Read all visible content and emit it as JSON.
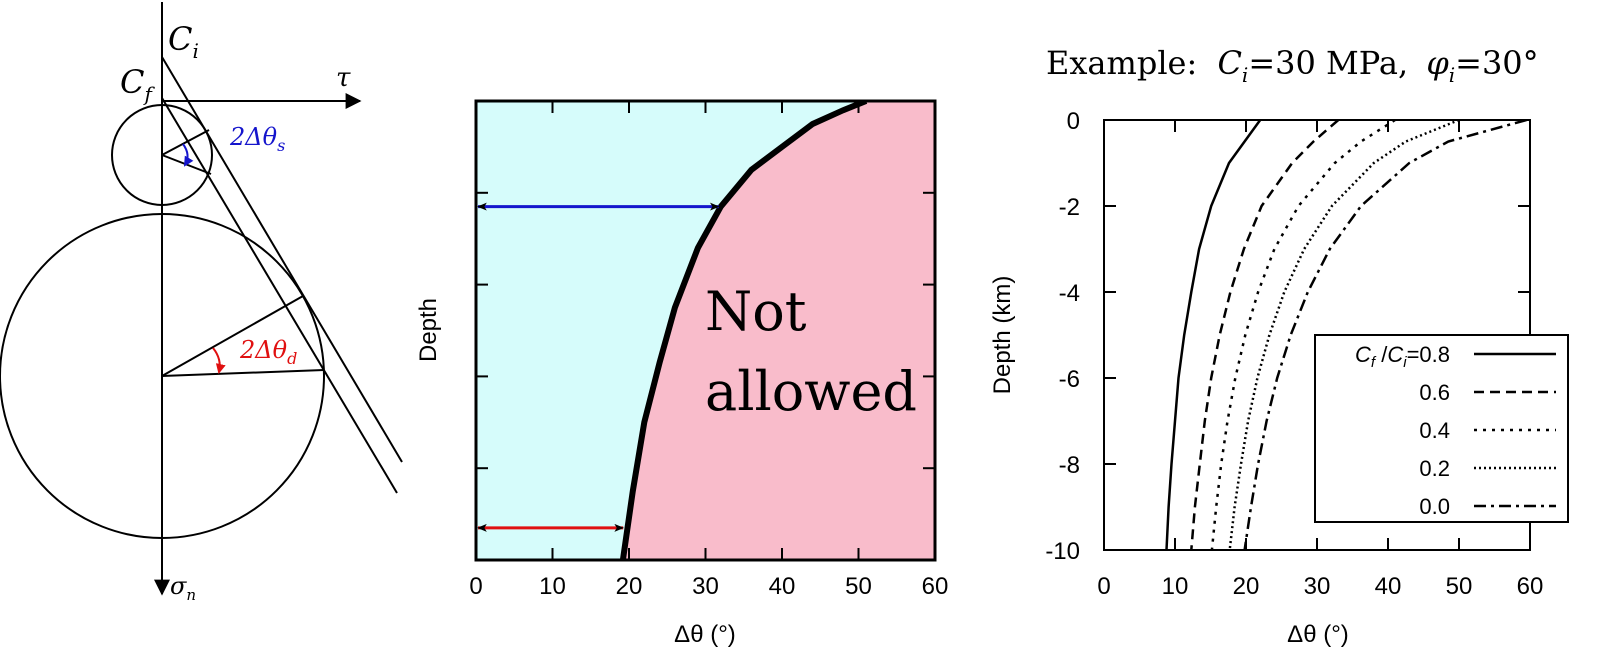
{
  "colors": {
    "allowed_fill": "#d6fcfb",
    "not_allowed_fill": "#f9bccb",
    "shallow_arrow": "#1515cc",
    "deep_arrow": "#e01010",
    "ink": "#000000"
  },
  "mohr_diagram": {
    "label_ci": "C",
    "label_ci_sub": "i",
    "label_cf": "C",
    "label_cf_sub": "f",
    "label_tau": "τ",
    "label_sigma": "σ",
    "label_sigma_sub": "n",
    "label_shallow_angle": "2Δθ",
    "label_shallow_angle_sub": "s",
    "label_deep_angle": "2Δθ",
    "label_deep_angle_sub": "d"
  },
  "chart_data": [
    {
      "type": "area",
      "xlabel": "Δθ (°)",
      "ylabel": "Depth",
      "xlim": [
        0,
        60
      ],
      "xticks": [
        "0",
        "10",
        "20",
        "30",
        "40",
        "50",
        "60"
      ],
      "ylim_relative": [
        0,
        1
      ],
      "region_label_line1": "Not",
      "region_label_line2": "allowed",
      "boundary": {
        "x": [
          51,
          48,
          44,
          40,
          36,
          32,
          29,
          26,
          24,
          22,
          20.5,
          19.2
        ],
        "depth_fraction": [
          0,
          0.02,
          0.05,
          0.1,
          0.15,
          0.23,
          0.32,
          0.45,
          0.57,
          0.7,
          0.85,
          1.0
        ]
      },
      "arrows": [
        {
          "name": "shallow",
          "depth_fraction": 0.23,
          "x_end": 32
        },
        {
          "name": "deep",
          "depth_fraction": 0.93,
          "x_end": 19.5
        }
      ]
    },
    {
      "type": "line",
      "title_prefix": "Example:",
      "title_ci": "C",
      "title_ci_sub": "i",
      "title_ci_value": "=30 MPa,",
      "title_phi": "φ",
      "title_phi_sub": "i",
      "title_phi_value": "=30°",
      "xlabel": "Δθ (°)",
      "ylabel": "Depth (km)",
      "xlim": [
        0,
        60
      ],
      "ylim": [
        -10,
        0
      ],
      "xticks": [
        "0",
        "10",
        "20",
        "30",
        "40",
        "50",
        "60"
      ],
      "yticks": [
        "0",
        "-2",
        "-4",
        "-6",
        "-8",
        "-10"
      ],
      "legend_title_cf": "C",
      "legend_title_cf_sub": "f",
      "legend_title_sep": " /",
      "legend_title_ci": "C",
      "legend_title_ci_sub": "i",
      "legend_placement": "lower-right",
      "series": [
        {
          "name": "=0.8",
          "dash": "solid",
          "depth": [
            0,
            -0.5,
            -1,
            -2,
            -3,
            -4,
            -5,
            -6,
            -7,
            -8,
            -9,
            -10
          ],
          "x": [
            22,
            19.8,
            17.6,
            15.1,
            13.4,
            12.3,
            11.3,
            10.5,
            10,
            9.5,
            9.1,
            8.8
          ]
        },
        {
          "name": "0.6",
          "dash": "dashed",
          "depth": [
            0,
            -0.5,
            -1,
            -2,
            -3,
            -4,
            -5,
            -6,
            -7,
            -8,
            -9,
            -10
          ],
          "x": [
            33,
            29.5,
            26.5,
            22.2,
            19.7,
            17.8,
            16.3,
            15.1,
            14.2,
            13.5,
            12.8,
            12.3
          ]
        },
        {
          "name": "0.4",
          "dash": "dotted-sparse",
          "depth": [
            0,
            -0.5,
            -1,
            -2,
            -3,
            -4,
            -5,
            -6,
            -7,
            -8,
            -9,
            -10
          ],
          "x": [
            41,
            36.2,
            32.5,
            27.4,
            24,
            21.7,
            19.9,
            18.5,
            17.4,
            16.5,
            15.8,
            15.2
          ]
        },
        {
          "name": "0.2",
          "dash": "dotted",
          "depth": [
            0,
            -0.5,
            -1,
            -2,
            -3,
            -4,
            -5,
            -6,
            -7,
            -8,
            -9,
            -10
          ],
          "x": [
            50,
            42.5,
            38,
            32.1,
            28.2,
            25.4,
            23.3,
            21.6,
            20.3,
            19.3,
            18.4,
            17.7
          ]
        },
        {
          "name": "0.0",
          "dash": "dash-dot",
          "depth": [
            0,
            -0.5,
            -1,
            -2,
            -3,
            -4,
            -5,
            -6,
            -7,
            -8,
            -9,
            -10
          ],
          "x": [
            59.5,
            48.5,
            43,
            36.2,
            31.8,
            28.7,
            26.3,
            24.4,
            22.9,
            21.7,
            20.7,
            19.8
          ]
        }
      ]
    }
  ]
}
